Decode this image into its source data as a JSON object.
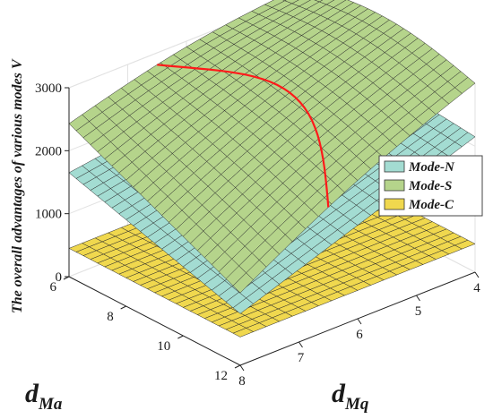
{
  "chart_data": {
    "type": "surface3d",
    "zlabel": "The overall advantages of various modes",
    "zlabel_symbol": "V",
    "xlabel_main": "d",
    "xlabel_sub": "Ma",
    "ylabel_main": "d",
    "ylabel_sub": "Mq",
    "x_ticks": [
      "6",
      "8",
      "10",
      "12"
    ],
    "y_ticks": [
      "4",
      "5",
      "6",
      "7",
      "8"
    ],
    "z_ticks": [
      "0",
      "1000",
      "2000",
      "3000"
    ],
    "x_range": [
      6,
      12
    ],
    "y_range": [
      4,
      8
    ],
    "z_range": [
      0,
      3000
    ],
    "legend": [
      "Mode-N",
      "Mode-S",
      "Mode-C"
    ],
    "legend_position": "right",
    "grid": true,
    "colors": {
      "Mode-N": "#a3dcd2",
      "Mode-S": "#b5d48b",
      "Mode-C": "#f0d84e",
      "intersection": "#ff1a1a",
      "mesh": "#2b2b2b"
    },
    "surfaces": [
      {
        "name": "Mode-S",
        "corners": {
          "x6_y4": 3150,
          "x12_y4": 3000,
          "x6_y8": 2430,
          "x12_y8": 1150
        }
      },
      {
        "name": "Mode-N",
        "corners": {
          "x6_y4": 2200,
          "x12_y4": 2150,
          "x6_y8": 1650,
          "x12_y8": 820
        }
      },
      {
        "name": "Mode-C",
        "corners": {
          "x6_y4": 450,
          "x12_y4": 450,
          "x6_y8": 450,
          "x12_y8": 450
        }
      }
    ]
  }
}
